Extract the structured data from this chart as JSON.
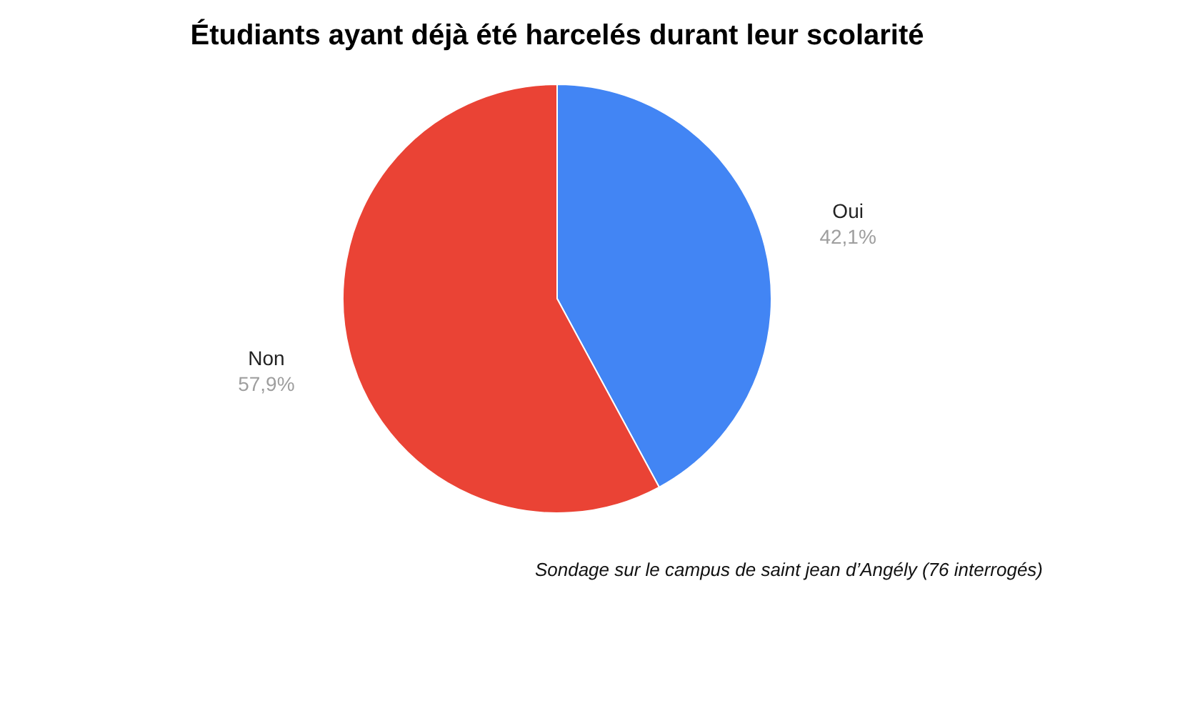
{
  "chart_data": {
    "type": "pie",
    "title": "Étudiants ayant déjà été harcelés durant leur scolarité",
    "categories": [
      "Oui",
      "Non"
    ],
    "values": [
      42.1,
      57.9
    ],
    "colors": [
      "#4285f4",
      "#ea4335"
    ],
    "value_labels": [
      "42,1%",
      "57,9%"
    ],
    "legend": false,
    "annotations": [
      "Sondage sur le campus de saint jean d’Angély (76 interrogés)"
    ]
  }
}
